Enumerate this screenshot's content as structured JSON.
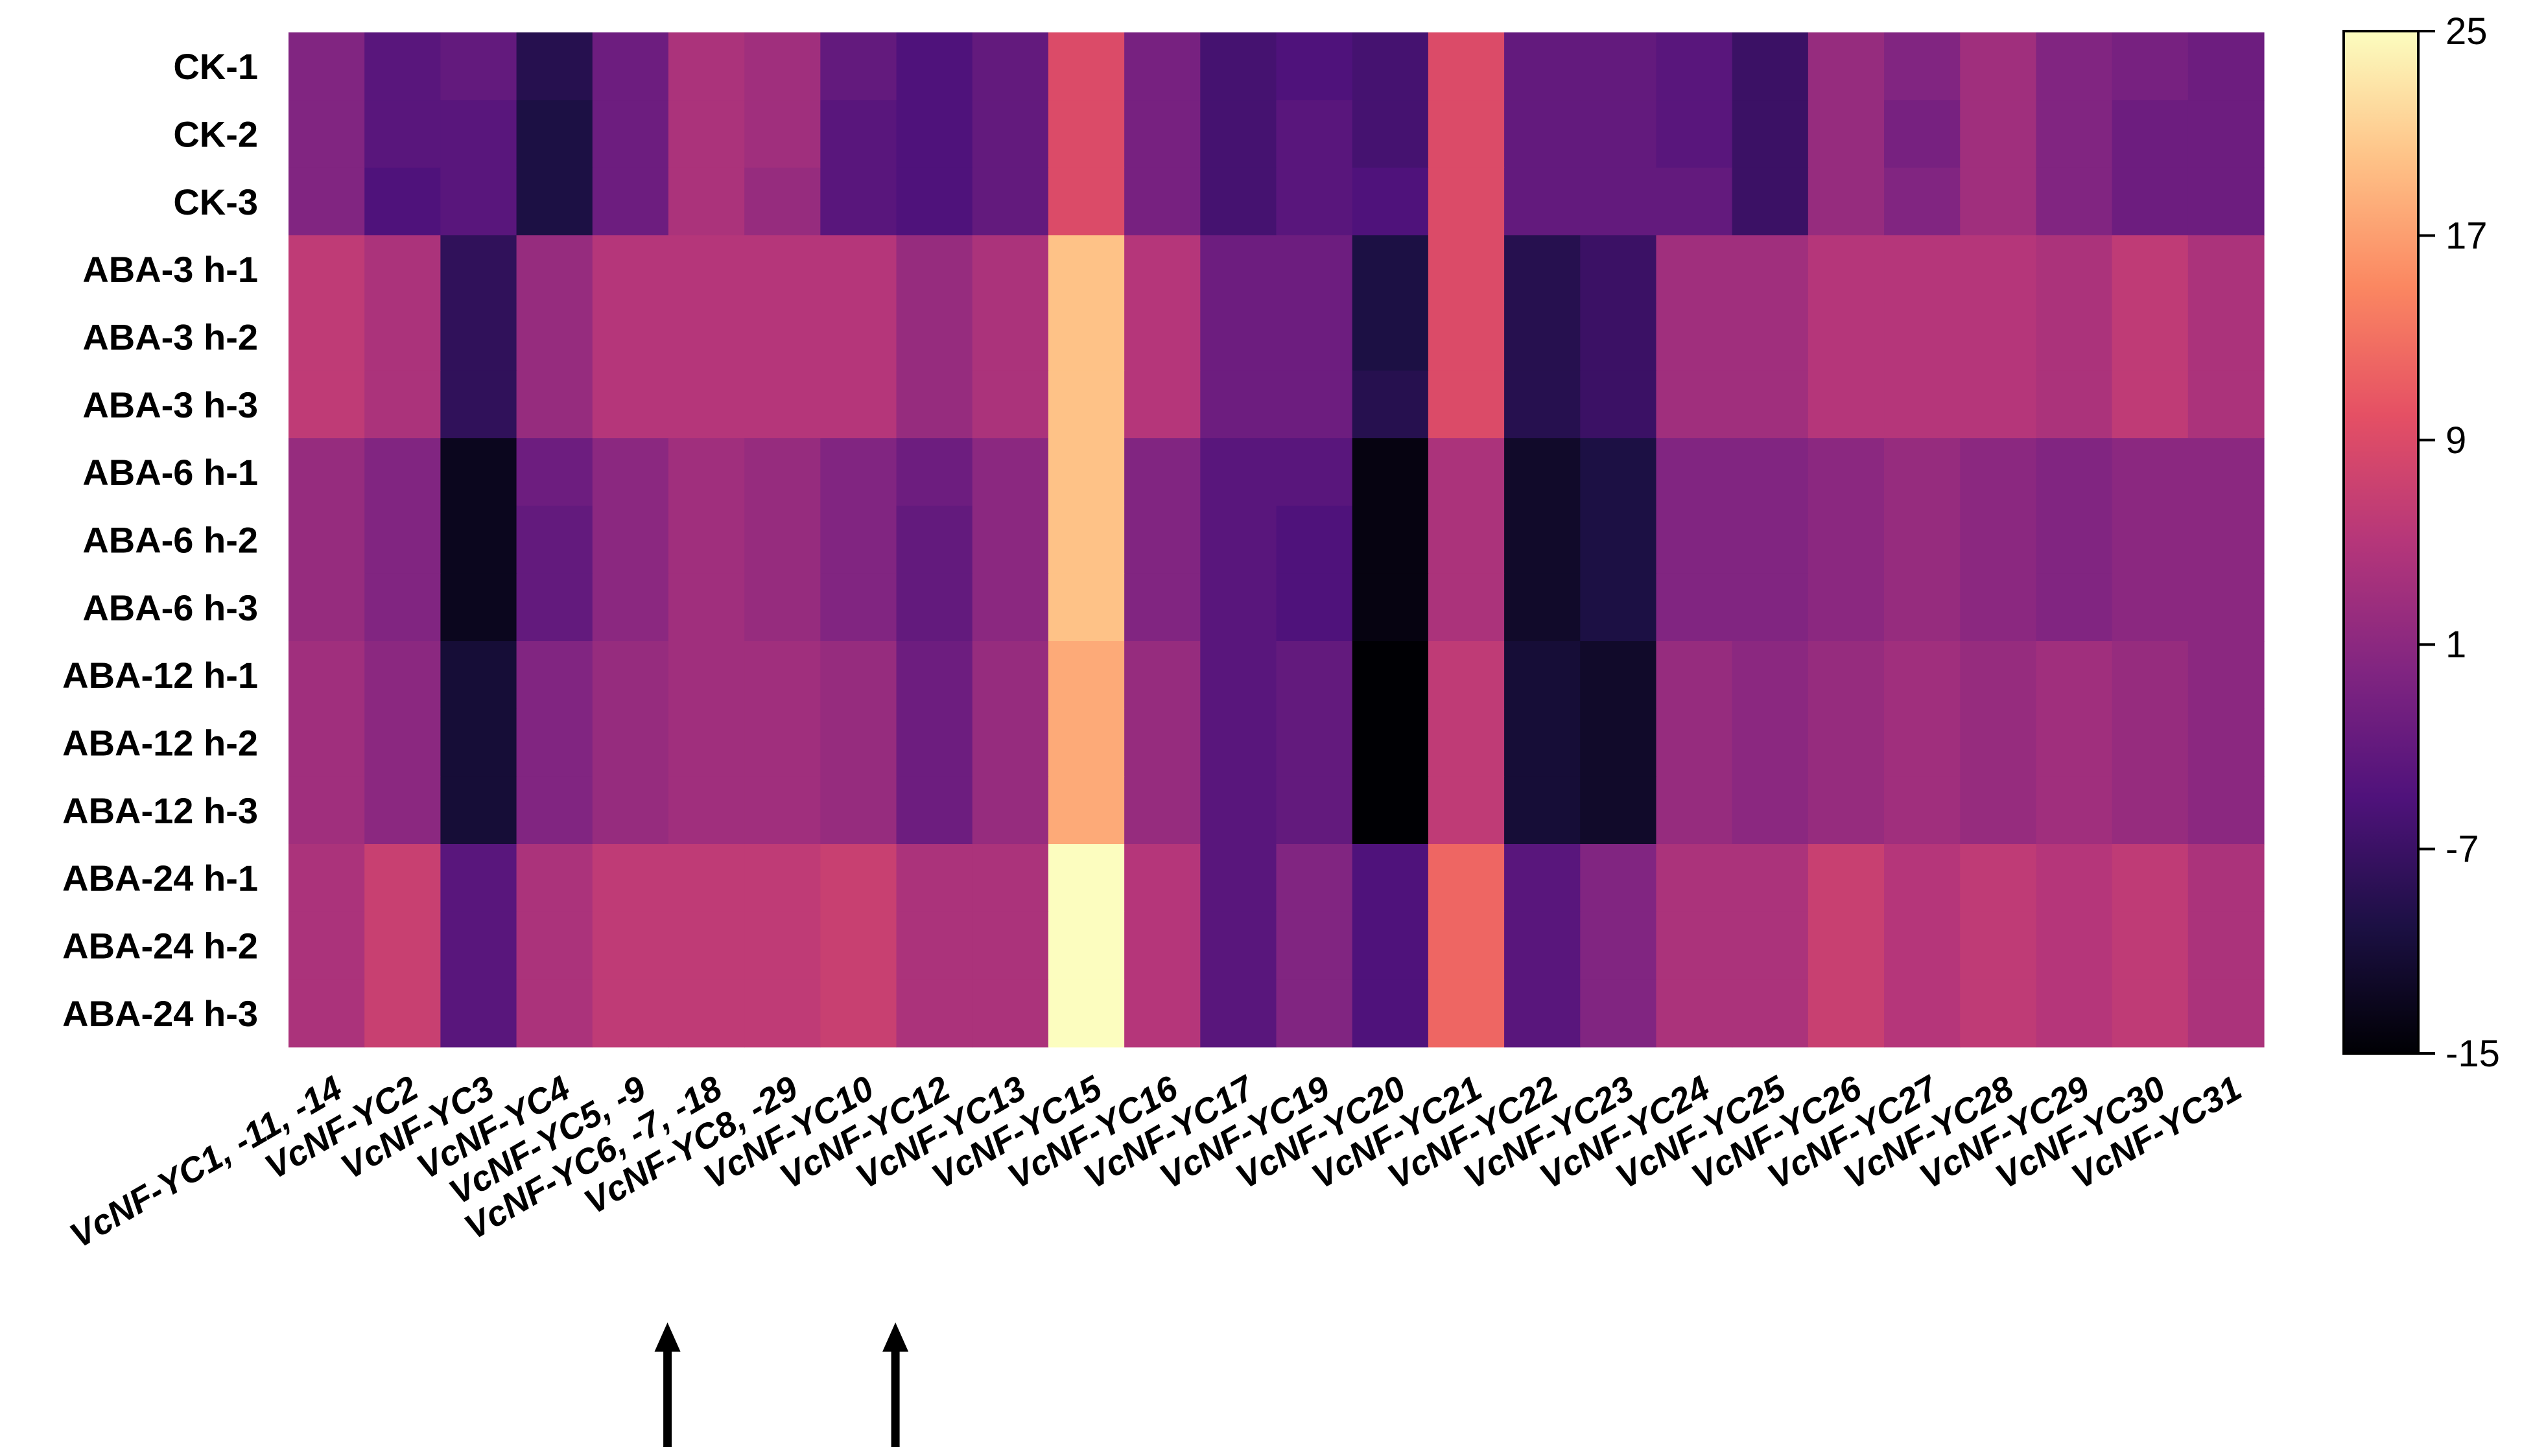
{
  "chart_data": {
    "type": "heatmap",
    "title": "",
    "xlabel": "",
    "ylabel": "",
    "rows": [
      "CK-1",
      "CK-2",
      "CK-3",
      "ABA-3 h-1",
      "ABA-3 h-2",
      "ABA-3 h-3",
      "ABA-6 h-1",
      "ABA-6 h-2",
      "ABA-6 h-3",
      "ABA-12 h-1",
      "ABA-12 h-2",
      "ABA-12 h-3",
      "ABA-24 h-1",
      "ABA-24 h-2",
      "ABA-24 h-3"
    ],
    "columns": [
      "VcNF-YC1, -11, -14",
      "VcNF-YC2",
      "VcNF-YC3",
      "VcNF-YC4",
      "VcNF-YC5, -9",
      "VcNF-YC6, -7, -18",
      "VcNF-YC8, -29",
      "VcNF-YC10",
      "VcNF-YC12",
      "VcNF-YC13",
      "VcNF-YC15",
      "VcNF-YC16",
      "VcNF-YC17",
      "VcNF-YC19",
      "VcNF-YC20",
      "VcNF-YC21",
      "VcNF-YC22",
      "VcNF-YC23",
      "VcNF-YC24",
      "VcNF-YC25",
      "VcNF-YC26",
      "VcNF-YC27",
      "VcNF-YC28",
      "VcNF-YC29",
      "VcNF-YC30",
      "VcNF-YC31"
    ],
    "values": [
      [
        0,
        -4,
        -3,
        -9,
        -2,
        4,
        3,
        -3,
        -5,
        -3,
        9,
        -1,
        -6,
        -5,
        -6,
        9,
        -3,
        -3,
        -4,
        -7,
        2,
        0,
        3,
        0,
        -1,
        -2
      ],
      [
        0,
        -4,
        -4,
        -10,
        -2,
        4,
        3,
        -4,
        -5,
        -3,
        9,
        -1,
        -6,
        -4,
        -6,
        9,
        -3,
        -3,
        -4,
        -7,
        2,
        -1,
        3,
        0,
        -2,
        -2
      ],
      [
        0,
        -5,
        -4,
        -10,
        -2,
        4,
        2,
        -4,
        -5,
        -3,
        9,
        -1,
        -6,
        -4,
        -5,
        9,
        -3,
        -3,
        -3,
        -7,
        2,
        0,
        3,
        0,
        -2,
        -2
      ],
      [
        6,
        4,
        -8,
        2,
        5,
        5,
        5,
        5,
        2,
        4,
        20,
        5,
        -2,
        -2,
        -10,
        9,
        -9,
        -7,
        3,
        3,
        5,
        5,
        5,
        4,
        6,
        4
      ],
      [
        6,
        4,
        -8,
        2,
        5,
        5,
        5,
        5,
        2,
        4,
        20,
        5,
        -2,
        -2,
        -10,
        9,
        -9,
        -7,
        3,
        3,
        5,
        5,
        5,
        4,
        6,
        4
      ],
      [
        6,
        4,
        -8,
        2,
        5,
        5,
        5,
        5,
        2,
        4,
        20,
        5,
        -2,
        -2,
        -9,
        9,
        -9,
        -7,
        3,
        3,
        5,
        5,
        5,
        4,
        6,
        4
      ],
      [
        2,
        0,
        -13,
        -2,
        1,
        3,
        2,
        0,
        -2,
        1,
        20,
        0,
        -4,
        -4,
        -14,
        4,
        -12,
        -10,
        0,
        0,
        1,
        2,
        1,
        0,
        1,
        1
      ],
      [
        2,
        0,
        -13,
        -3,
        1,
        3,
        2,
        0,
        -3,
        1,
        20,
        0,
        -4,
        -5,
        -14,
        4,
        -12,
        -10,
        0,
        0,
        1,
        2,
        1,
        0,
        1,
        1
      ],
      [
        2,
        0,
        -13,
        -3,
        1,
        3,
        2,
        0,
        -3,
        1,
        20,
        0,
        -4,
        -5,
        -14,
        4,
        -12,
        -10,
        0,
        0,
        1,
        2,
        1,
        0,
        1,
        1
      ],
      [
        3,
        1,
        -11,
        0,
        2,
        3,
        3,
        2,
        -2,
        2,
        18,
        2,
        -4,
        -3,
        -15,
        6,
        -11,
        -12,
        2,
        1,
        2,
        3,
        2,
        3,
        2,
        1
      ],
      [
        3,
        1,
        -11,
        0,
        2,
        3,
        3,
        2,
        -2,
        2,
        18,
        2,
        -4,
        -3,
        -15,
        6,
        -11,
        -12,
        2,
        1,
        2,
        3,
        2,
        3,
        2,
        1
      ],
      [
        3,
        1,
        -11,
        0,
        2,
        3,
        3,
        2,
        -2,
        2,
        18,
        2,
        -4,
        -3,
        -15,
        6,
        -11,
        -12,
        2,
        1,
        2,
        3,
        2,
        3,
        2,
        1
      ],
      [
        4,
        7,
        -4,
        4,
        6,
        6,
        6,
        7,
        4,
        4,
        25,
        5,
        -4,
        0,
        -5,
        12,
        -4,
        0,
        4,
        4,
        7,
        5,
        6,
        5,
        6,
        4
      ],
      [
        4,
        7,
        -4,
        4,
        6,
        6,
        6,
        7,
        4,
        4,
        25,
        5,
        -4,
        0,
        -5,
        12,
        -4,
        0,
        4,
        4,
        7,
        5,
        6,
        5,
        6,
        4
      ],
      [
        4,
        7,
        -4,
        4,
        6,
        6,
        6,
        7,
        4,
        4,
        25,
        5,
        -4,
        0,
        -5,
        12,
        -4,
        0,
        4,
        4,
        7,
        5,
        6,
        5,
        6,
        4
      ]
    ],
    "colorbar": {
      "min": -15,
      "max": 25,
      "ticks": [
        25,
        17,
        9,
        1,
        -7,
        -15
      ],
      "colormap": "magma",
      "colors": [
        "#000004",
        "#1c1044",
        "#4f127b",
        "#812581",
        "#b5367a",
        "#e55064",
        "#fb8761",
        "#fec287",
        "#fcfdbf"
      ]
    },
    "arrows": [
      "VcNF-YC6, -7, -18",
      "VcNF-YC12"
    ],
    "grid": false
  }
}
